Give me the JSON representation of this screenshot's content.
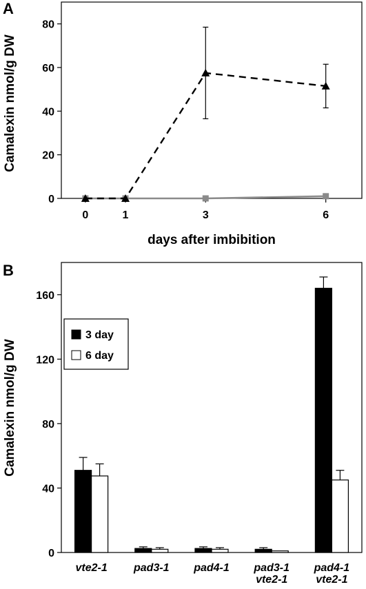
{
  "chart_data": [
    {
      "panel_label": "A",
      "type": "line",
      "xlabel": "days after imbibition",
      "ylabel": "Camalexin nmol/g DW",
      "x": [
        0,
        1,
        3,
        6
      ],
      "x_ticks": [
        "0",
        "1",
        "3",
        "6"
      ],
      "xlim": [
        -0.6,
        6.9
      ],
      "ylim": [
        0,
        90
      ],
      "y_ticks": [
        "0",
        "20",
        "40",
        "60",
        "80"
      ],
      "series": [
        {
          "marker": "triangle",
          "line_style": "dashed",
          "color": "#000000",
          "values": [
            0,
            0,
            57.5,
            51.5
          ],
          "error": [
            0,
            0,
            21,
            10
          ]
        },
        {
          "marker": "square",
          "line_style": "solid",
          "color": "#8a8a8a",
          "values": [
            0,
            0,
            0,
            1
          ],
          "error": [
            0,
            0,
            0,
            0
          ]
        }
      ],
      "grid": false,
      "legend": "none"
    },
    {
      "panel_label": "B",
      "type": "bar",
      "ylabel": "Camalexin nmol/g DW",
      "categories": [
        [
          "vte2-1"
        ],
        [
          "pad3-1"
        ],
        [
          "pad4-1"
        ],
        [
          "pad3-1",
          "vte2-1"
        ],
        [
          "pad4-1",
          "vte2-1"
        ]
      ],
      "ylim": [
        0,
        180
      ],
      "y_ticks": [
        "0",
        "40",
        "80",
        "120",
        "160"
      ],
      "series": [
        {
          "name": "3 day",
          "color": "#000000",
          "values": [
            51,
            2.5,
            2.5,
            2,
            164
          ],
          "error": [
            8,
            1,
            1,
            1,
            7
          ]
        },
        {
          "name": "6 day",
          "color": "#ffffff",
          "values": [
            47.5,
            2,
            2,
            1,
            45
          ],
          "error": [
            7.5,
            1,
            1,
            0,
            6
          ]
        }
      ],
      "grid": false,
      "legend": "top-left"
    }
  ]
}
